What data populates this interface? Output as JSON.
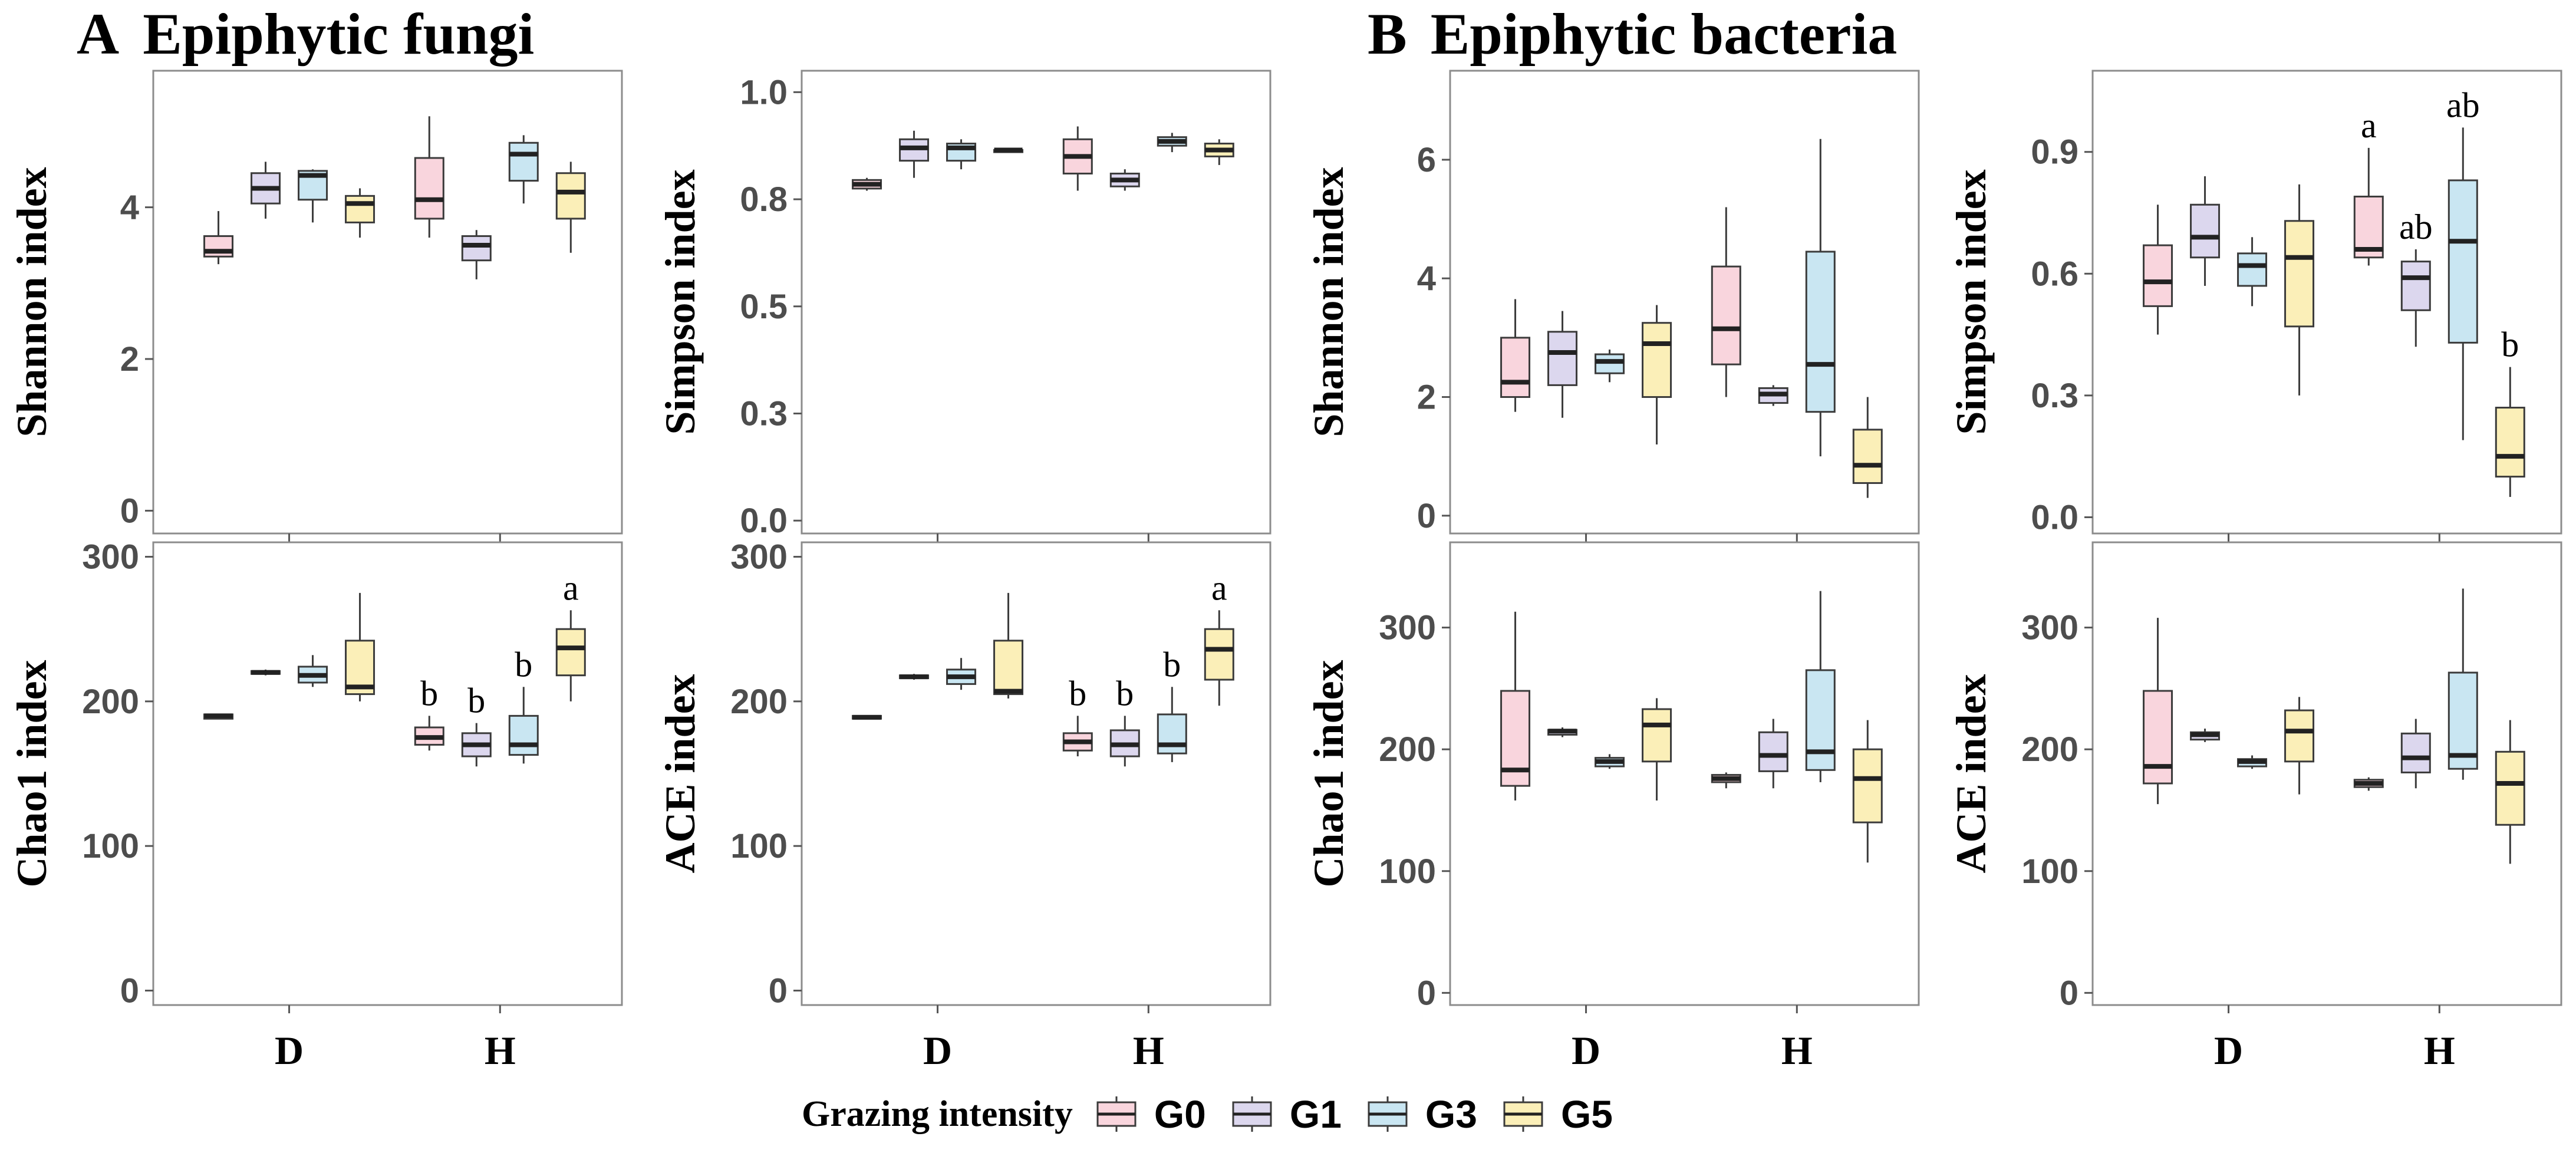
{
  "sections": [
    {
      "letter": "A",
      "title": "Epiphytic fungi"
    },
    {
      "letter": "B",
      "title": "Epiphytic bacteria"
    }
  ],
  "legend": {
    "title": "Grazing intensity",
    "items": [
      {
        "label": "G0",
        "fill": "#f9d5dd"
      },
      {
        "label": "G1",
        "fill": "#dcd7ee"
      },
      {
        "label": "G3",
        "fill": "#c9e6f2"
      },
      {
        "label": "G5",
        "fill": "#fbefb8"
      }
    ]
  },
  "chart_data": [
    {
      "type": "box",
      "ylabel": "Shannon index",
      "categories": [
        "D",
        "H"
      ],
      "groups": [
        "G0",
        "G1",
        "G3",
        "G5"
      ],
      "ylim": [
        -0.3,
        5.8
      ],
      "yticks": [
        0,
        2,
        4
      ],
      "boxes": {
        "D": [
          {
            "min": 3.25,
            "q1": 3.35,
            "median": 3.42,
            "q3": 3.62,
            "max": 3.95
          },
          {
            "min": 3.85,
            "q1": 4.05,
            "median": 4.25,
            "q3": 4.45,
            "max": 4.6
          },
          {
            "min": 3.8,
            "q1": 4.1,
            "median": 4.42,
            "q3": 4.48,
            "max": 4.5
          },
          {
            "min": 3.6,
            "q1": 3.8,
            "median": 4.05,
            "q3": 4.15,
            "max": 4.25
          }
        ],
        "H": [
          {
            "min": 3.6,
            "q1": 3.85,
            "median": 4.1,
            "q3": 4.65,
            "max": 5.2
          },
          {
            "min": 3.05,
            "q1": 3.3,
            "median": 3.5,
            "q3": 3.62,
            "max": 3.7
          },
          {
            "min": 4.05,
            "q1": 4.35,
            "median": 4.7,
            "q3": 4.85,
            "max": 4.95
          },
          {
            "min": 3.4,
            "q1": 3.85,
            "median": 4.2,
            "q3": 4.45,
            "max": 4.6
          }
        ]
      },
      "letters": {
        "D": [
          "",
          "",
          "",
          ""
        ],
        "H": [
          "",
          "",
          "",
          ""
        ]
      }
    },
    {
      "type": "box",
      "ylabel": "Simpson index",
      "categories": [
        "D",
        "H"
      ],
      "groups": [
        "G0",
        "G1",
        "G3",
        "G5"
      ],
      "ylim": [
        -0.03,
        1.05
      ],
      "yticks": [
        0.0,
        0.25,
        0.5,
        0.75,
        1.0
      ],
      "boxes": {
        "D": [
          {
            "min": 0.77,
            "q1": 0.775,
            "median": 0.785,
            "q3": 0.795,
            "max": 0.8
          },
          {
            "min": 0.8,
            "q1": 0.84,
            "median": 0.87,
            "q3": 0.89,
            "max": 0.91
          },
          {
            "min": 0.82,
            "q1": 0.84,
            "median": 0.87,
            "q3": 0.88,
            "max": 0.89
          },
          {
            "min": 0.86,
            "q1": 0.86,
            "median": 0.865,
            "q3": 0.865,
            "max": 0.87
          }
        ],
        "H": [
          {
            "min": 0.77,
            "q1": 0.81,
            "median": 0.85,
            "q3": 0.89,
            "max": 0.92
          },
          {
            "min": 0.77,
            "q1": 0.78,
            "median": 0.795,
            "q3": 0.81,
            "max": 0.82
          },
          {
            "min": 0.86,
            "q1": 0.875,
            "median": 0.885,
            "q3": 0.895,
            "max": 0.905
          },
          {
            "min": 0.83,
            "q1": 0.85,
            "median": 0.865,
            "q3": 0.88,
            "max": 0.89
          }
        ]
      },
      "letters": {
        "D": [
          "",
          "",
          "",
          ""
        ],
        "H": [
          "",
          "",
          "",
          ""
        ]
      }
    },
    {
      "type": "box",
      "ylabel": "Shannon index",
      "categories": [
        "D",
        "H"
      ],
      "groups": [
        "G0",
        "G1",
        "G3",
        "G5"
      ],
      "ylim": [
        -0.3,
        7.5
      ],
      "yticks": [
        0,
        2,
        4,
        6
      ],
      "boxes": {
        "D": [
          {
            "min": 1.75,
            "q1": 2.0,
            "median": 2.25,
            "q3": 3.0,
            "max": 3.65
          },
          {
            "min": 1.65,
            "q1": 2.2,
            "median": 2.75,
            "q3": 3.1,
            "max": 3.45
          },
          {
            "min": 2.25,
            "q1": 2.4,
            "median": 2.6,
            "q3": 2.72,
            "max": 2.8
          },
          {
            "min": 1.2,
            "q1": 2.0,
            "median": 2.9,
            "q3": 3.25,
            "max": 3.55
          }
        ],
        "H": [
          {
            "min": 2.0,
            "q1": 2.55,
            "median": 3.15,
            "q3": 4.2,
            "max": 5.2
          },
          {
            "min": 1.85,
            "q1": 1.9,
            "median": 2.05,
            "q3": 2.15,
            "max": 2.2
          },
          {
            "min": 1.0,
            "q1": 1.75,
            "median": 2.55,
            "q3": 4.45,
            "max": 6.35
          },
          {
            "min": 0.3,
            "q1": 0.55,
            "median": 0.85,
            "q3": 1.45,
            "max": 2.0
          }
        ]
      },
      "letters": {
        "D": [
          "",
          "",
          "",
          ""
        ],
        "H": [
          "",
          "",
          "",
          ""
        ]
      }
    },
    {
      "type": "box",
      "ylabel": "Simpson index",
      "categories": [
        "D",
        "H"
      ],
      "groups": [
        "G0",
        "G1",
        "G3",
        "G5"
      ],
      "ylim": [
        -0.04,
        1.1
      ],
      "yticks": [
        0.0,
        0.3,
        0.6,
        0.9
      ],
      "boxes": {
        "D": [
          {
            "min": 0.45,
            "q1": 0.52,
            "median": 0.58,
            "q3": 0.67,
            "max": 0.77
          },
          {
            "min": 0.57,
            "q1": 0.64,
            "median": 0.69,
            "q3": 0.77,
            "max": 0.84
          },
          {
            "min": 0.52,
            "q1": 0.57,
            "median": 0.62,
            "q3": 0.65,
            "max": 0.69
          },
          {
            "min": 0.3,
            "q1": 0.47,
            "median": 0.64,
            "q3": 0.73,
            "max": 0.82
          }
        ],
        "H": [
          {
            "min": 0.62,
            "q1": 0.64,
            "median": 0.66,
            "q3": 0.79,
            "max": 0.91
          },
          {
            "min": 0.42,
            "q1": 0.51,
            "median": 0.59,
            "q3": 0.63,
            "max": 0.66
          },
          {
            "min": 0.19,
            "q1": 0.43,
            "median": 0.68,
            "q3": 0.83,
            "max": 0.96
          },
          {
            "min": 0.05,
            "q1": 0.1,
            "median": 0.15,
            "q3": 0.27,
            "max": 0.37
          }
        ]
      },
      "letters": {
        "D": [
          "",
          "",
          "",
          ""
        ],
        "H": [
          "a",
          "ab",
          "ab",
          "b"
        ]
      }
    },
    {
      "type": "box",
      "ylabel": "Chao1 index",
      "categories": [
        "D",
        "H"
      ],
      "groups": [
        "G0",
        "G1",
        "G3",
        "G5"
      ],
      "ylim": [
        -10,
        310
      ],
      "yticks": [
        0,
        100,
        200,
        300
      ],
      "boxes": {
        "D": [
          {
            "min": 188,
            "q1": 188,
            "median": 190,
            "q3": 191,
            "max": 191
          },
          {
            "min": 218,
            "q1": 219,
            "median": 220,
            "q3": 221,
            "max": 222
          },
          {
            "min": 210,
            "q1": 213,
            "median": 218,
            "q3": 224,
            "max": 232
          },
          {
            "min": 200,
            "q1": 205,
            "median": 210,
            "q3": 242,
            "max": 275
          }
        ],
        "H": [
          {
            "min": 166,
            "q1": 170,
            "median": 175,
            "q3": 182,
            "max": 190
          },
          {
            "min": 155,
            "q1": 162,
            "median": 170,
            "q3": 178,
            "max": 185
          },
          {
            "min": 157,
            "q1": 163,
            "median": 170,
            "q3": 190,
            "max": 210
          },
          {
            "min": 200,
            "q1": 218,
            "median": 237,
            "q3": 250,
            "max": 263
          }
        ]
      },
      "letters": {
        "D": [
          "",
          "",
          "",
          ""
        ],
        "H": [
          "b",
          "b",
          "b",
          "a"
        ]
      }
    },
    {
      "type": "box",
      "ylabel": "ACE index",
      "categories": [
        "D",
        "H"
      ],
      "groups": [
        "G0",
        "G1",
        "G3",
        "G5"
      ],
      "ylim": [
        -10,
        310
      ],
      "yticks": [
        0,
        100,
        200,
        300
      ],
      "boxes": {
        "D": [
          {
            "min": 188,
            "q1": 188,
            "median": 189,
            "q3": 190,
            "max": 190
          },
          {
            "min": 215,
            "q1": 216,
            "median": 217,
            "q3": 218,
            "max": 219
          },
          {
            "min": 208,
            "q1": 212,
            "median": 217,
            "q3": 222,
            "max": 230
          },
          {
            "min": 202,
            "q1": 205,
            "median": 207,
            "q3": 242,
            "max": 275
          }
        ],
        "H": [
          {
            "min": 162,
            "q1": 166,
            "median": 172,
            "q3": 178,
            "max": 190
          },
          {
            "min": 155,
            "q1": 162,
            "median": 170,
            "q3": 180,
            "max": 190
          },
          {
            "min": 158,
            "q1": 164,
            "median": 170,
            "q3": 191,
            "max": 210
          },
          {
            "min": 197,
            "q1": 215,
            "median": 236,
            "q3": 250,
            "max": 263
          }
        ]
      },
      "letters": {
        "D": [
          "",
          "",
          "",
          ""
        ],
        "H": [
          "b",
          "b",
          "b",
          "a"
        ]
      }
    },
    {
      "type": "box",
      "ylabel": "Chao1 index",
      "categories": [
        "D",
        "H"
      ],
      "groups": [
        "G0",
        "G1",
        "G3",
        "G5"
      ],
      "ylim": [
        -10,
        370
      ],
      "yticks": [
        0,
        100,
        200,
        300
      ],
      "boxes": {
        "D": [
          {
            "min": 158,
            "q1": 170,
            "median": 183,
            "q3": 248,
            "max": 313
          },
          {
            "min": 210,
            "q1": 212,
            "median": 215,
            "q3": 216,
            "max": 218
          },
          {
            "min": 184,
            "q1": 186,
            "median": 190,
            "q3": 193,
            "max": 196
          },
          {
            "min": 158,
            "q1": 190,
            "median": 220,
            "q3": 233,
            "max": 242
          }
        ],
        "H": [
          {
            "min": 168,
            "q1": 173,
            "median": 176,
            "q3": 179,
            "max": 181
          },
          {
            "min": 168,
            "q1": 182,
            "median": 195,
            "q3": 214,
            "max": 225
          },
          {
            "min": 173,
            "q1": 183,
            "median": 198,
            "q3": 265,
            "max": 330
          },
          {
            "min": 107,
            "q1": 140,
            "median": 176,
            "q3": 200,
            "max": 224
          }
        ]
      },
      "letters": {
        "D": [
          "",
          "",
          "",
          ""
        ],
        "H": [
          "",
          "",
          "",
          ""
        ]
      }
    },
    {
      "type": "box",
      "ylabel": "ACE index",
      "categories": [
        "D",
        "H"
      ],
      "groups": [
        "G0",
        "G1",
        "G3",
        "G5"
      ],
      "ylim": [
        -10,
        370
      ],
      "yticks": [
        0,
        100,
        200,
        300
      ],
      "boxes": {
        "D": [
          {
            "min": 155,
            "q1": 172,
            "median": 186,
            "q3": 248,
            "max": 308
          },
          {
            "min": 206,
            "q1": 208,
            "median": 212,
            "q3": 214,
            "max": 217
          },
          {
            "min": 184,
            "q1": 186,
            "median": 190,
            "q3": 192,
            "max": 195
          },
          {
            "min": 163,
            "q1": 190,
            "median": 215,
            "q3": 232,
            "max": 243
          }
        ],
        "H": [
          {
            "min": 166,
            "q1": 169,
            "median": 172,
            "q3": 175,
            "max": 177
          },
          {
            "min": 168,
            "q1": 181,
            "median": 193,
            "q3": 213,
            "max": 225
          },
          {
            "min": 175,
            "q1": 184,
            "median": 195,
            "q3": 263,
            "max": 332
          },
          {
            "min": 106,
            "q1": 138,
            "median": 172,
            "q3": 198,
            "max": 224
          }
        ]
      },
      "letters": {
        "D": [
          "",
          "",
          "",
          ""
        ],
        "H": [
          "",
          "",
          "",
          ""
        ]
      }
    }
  ]
}
